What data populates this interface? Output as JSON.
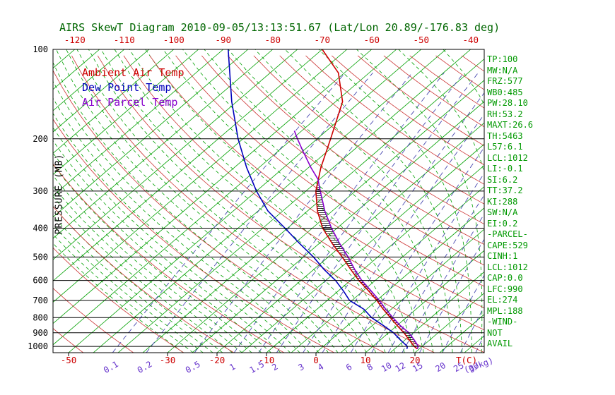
{
  "title": "AIRS SkewT Diagram 2010-09-05/13:13:51.67 (Lat/Lon 20.89/-176.83 deg)",
  "colors": {
    "title": "#006600",
    "isobar": "#000000",
    "isotherm": "#00a000",
    "moist_adiabat": "#00a000",
    "dry_adiabat": "#cc3333",
    "mixing_ratio_line": "#4a4ab0",
    "mixing_ratio_label": "#6633cc",
    "top_axis": "#cc0000",
    "bottom_temp_axis": "#cc0000",
    "panel_text": "#009900",
    "ambient": "#cc0000",
    "dew_point": "#0000bb",
    "parcel": "#8800cc",
    "hatch": "#000000"
  },
  "legend": [
    {
      "label": "Ambient Air Temp",
      "color": "#cc0000"
    },
    {
      "label": "Dew Point Temp",
      "color": "#0000bb"
    },
    {
      "label": "Air Parcel Temp",
      "color": "#8800cc"
    }
  ],
  "axes": {
    "pressure_label": "PRESSURE (MB)",
    "pressure_ticks": [
      100,
      200,
      300,
      400,
      500,
      600,
      700,
      800,
      900,
      1000
    ],
    "top_temp_ticks": [
      -120,
      -110,
      -100,
      -90,
      -80,
      -70,
      -60,
      -50,
      -40
    ],
    "bottom_temp_ticks": [
      -50,
      -30,
      -20,
      -10,
      0,
      10,
      20
    ],
    "temp_unit_label": "T(C)",
    "mixing_ratio_ticks": [
      0.1,
      0.2,
      0.5,
      1,
      1.5,
      2,
      3,
      4,
      6,
      8,
      10,
      12,
      15,
      20,
      25,
      30
    ],
    "mixing_ratio_unit_label": "(g/kg)"
  },
  "stats_panel": [
    "TP:100",
    "MW:N/A",
    "FRZ:577",
    "WB0:485",
    "PW:28.10",
    "RH:53.2",
    "MAXT:26.6",
    "TH:5463",
    "L57:6.1",
    "LCL:1012",
    "LI:-0.1",
    "SI:6.2",
    "TT:37.2",
    "KI:288",
    "SW:N/A",
    "EI:0.2",
    "-PARCEL-",
    "CAPE:529",
    "CINH:1",
    "LCL:1012",
    "CAP:0.0",
    "LFC:990",
    "EL:274",
    "MPL:188",
    "-WIND-",
    "NOT",
    "AVAIL"
  ],
  "chart_data": {
    "type": "line",
    "y_scale": "log-pressure",
    "y_range_mb": [
      100,
      1050
    ],
    "x_unit": "deg C (45-degree skewed isotherms)",
    "series": [
      {
        "name": "Ambient Air Temp",
        "color": "#cc0000",
        "points": [
          [
            1020,
            19.6
          ],
          [
            1000,
            18.4
          ],
          [
            950,
            15.8
          ],
          [
            900,
            13.1
          ],
          [
            850,
            10.0
          ],
          [
            800,
            6.8
          ],
          [
            750,
            3.4
          ],
          [
            700,
            0.0
          ],
          [
            650,
            -3.9
          ],
          [
            600,
            -8.3
          ],
          [
            550,
            -12.6
          ],
          [
            500,
            -17.2
          ],
          [
            450,
            -22.4
          ],
          [
            400,
            -27.9
          ],
          [
            350,
            -33.0
          ],
          [
            300,
            -38.0
          ],
          [
            250,
            -42.5
          ],
          [
            200,
            -47.3
          ],
          [
            150,
            -53.6
          ],
          [
            120,
            -61.2
          ],
          [
            100,
            -70.0
          ]
        ]
      },
      {
        "name": "Dew Point Temp",
        "color": "#0000bb",
        "points": [
          [
            1020,
            17.5
          ],
          [
            1000,
            17.0
          ],
          [
            950,
            14.0
          ],
          [
            900,
            11.0
          ],
          [
            850,
            7.2
          ],
          [
            800,
            3.0
          ],
          [
            750,
            -0.5
          ],
          [
            700,
            -5.5
          ],
          [
            650,
            -9.0
          ],
          [
            600,
            -13.0
          ],
          [
            550,
            -18.0
          ],
          [
            500,
            -23.0
          ],
          [
            450,
            -29.0
          ],
          [
            400,
            -35.5
          ],
          [
            350,
            -43.0
          ],
          [
            300,
            -50.0
          ],
          [
            250,
            -57.5
          ],
          [
            200,
            -66.0
          ],
          [
            150,
            -76.0
          ],
          [
            100,
            -89.0
          ]
        ]
      },
      {
        "name": "Air Parcel Temp",
        "color": "#8800cc",
        "points": [
          [
            1020,
            19.6
          ],
          [
            1000,
            19.2
          ],
          [
            950,
            16.8
          ],
          [
            900,
            14.1
          ],
          [
            850,
            10.6
          ],
          [
            800,
            7.3
          ],
          [
            750,
            3.9
          ],
          [
            700,
            0.5
          ],
          [
            650,
            -3.4
          ],
          [
            600,
            -7.7
          ],
          [
            550,
            -11.8
          ],
          [
            500,
            -16.0
          ],
          [
            450,
            -20.9
          ],
          [
            400,
            -26.1
          ],
          [
            350,
            -31.5
          ],
          [
            300,
            -37.1
          ],
          [
            274,
            -40.3
          ],
          [
            250,
            -44.5
          ],
          [
            220,
            -50.0
          ],
          [
            200,
            -54.0
          ],
          [
            188,
            -56.5
          ]
        ]
      }
    ],
    "cape_region": {
      "p_bottom": 1000,
      "p_top": 274
    }
  }
}
